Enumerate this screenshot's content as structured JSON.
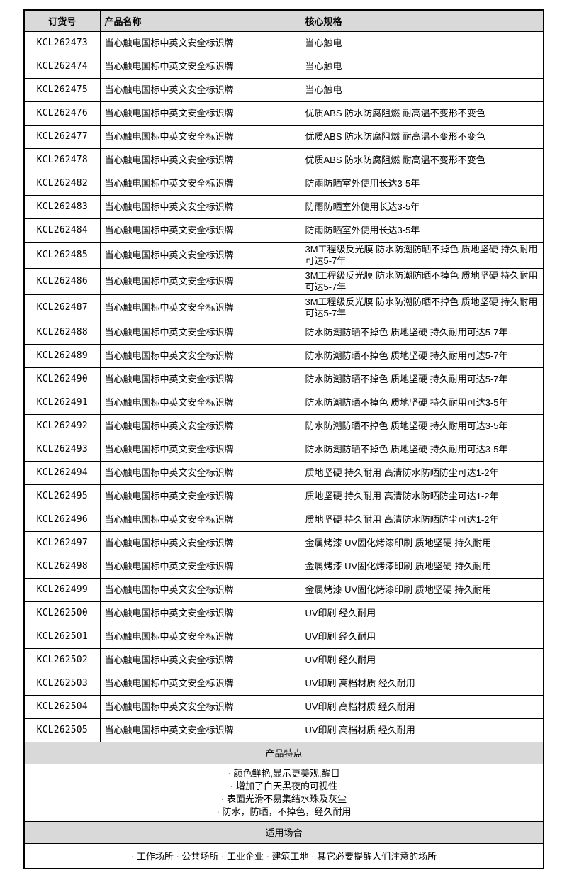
{
  "colors": {
    "header_bg": "#d9d9d9",
    "border": "#000000",
    "text": "#000000",
    "page_bg": "#ffffff"
  },
  "table": {
    "headers": [
      {
        "label": "订货号"
      },
      {
        "label": "产品名称"
      },
      {
        "label": "核心规格"
      }
    ],
    "rows": [
      {
        "order_id": "KCL262473",
        "product_name": "当心触电国标中英文安全标识牌",
        "spec": "当心触电"
      },
      {
        "order_id": "KCL262474",
        "product_name": "当心触电国标中英文安全标识牌",
        "spec": "当心触电"
      },
      {
        "order_id": "KCL262475",
        "product_name": "当心触电国标中英文安全标识牌",
        "spec": "当心触电"
      },
      {
        "order_id": "KCL262476",
        "product_name": "当心触电国标中英文安全标识牌",
        "spec": "优质ABS 防水防腐阻燃 耐高温不变形不变色"
      },
      {
        "order_id": "KCL262477",
        "product_name": "当心触电国标中英文安全标识牌",
        "spec": "优质ABS 防水防腐阻燃 耐高温不变形不变色"
      },
      {
        "order_id": "KCL262478",
        "product_name": "当心触电国标中英文安全标识牌",
        "spec": "优质ABS 防水防腐阻燃 耐高温不变形不变色"
      },
      {
        "order_id": "KCL262482",
        "product_name": "当心触电国标中英文安全标识牌",
        "spec": "防雨防晒室外使用长达3-5年"
      },
      {
        "order_id": "KCL262483",
        "product_name": "当心触电国标中英文安全标识牌",
        "spec": "防雨防晒室外使用长达3-5年"
      },
      {
        "order_id": "KCL262484",
        "product_name": "当心触电国标中英文安全标识牌",
        "spec": "防雨防晒室外使用长达3-5年"
      },
      {
        "order_id": "KCL262485",
        "product_name": "当心触电国标中英文安全标识牌",
        "spec": "3M工程级反光膜 防水防潮防晒不掉色 质地坚硬 持久耐用可达5-7年"
      },
      {
        "order_id": "KCL262486",
        "product_name": "当心触电国标中英文安全标识牌",
        "spec": "3M工程级反光膜 防水防潮防晒不掉色 质地坚硬 持久耐用可达5-7年"
      },
      {
        "order_id": "KCL262487",
        "product_name": "当心触电国标中英文安全标识牌",
        "spec": "3M工程级反光膜 防水防潮防晒不掉色 质地坚硬 持久耐用可达5-7年"
      },
      {
        "order_id": "KCL262488",
        "product_name": "当心触电国标中英文安全标识牌",
        "spec": "防水防潮防晒不掉色 质地坚硬 持久耐用可达5-7年"
      },
      {
        "order_id": "KCL262489",
        "product_name": "当心触电国标中英文安全标识牌",
        "spec": "防水防潮防晒不掉色 质地坚硬 持久耐用可达5-7年"
      },
      {
        "order_id": "KCL262490",
        "product_name": "当心触电国标中英文安全标识牌",
        "spec": "防水防潮防晒不掉色 质地坚硬 持久耐用可达5-7年"
      },
      {
        "order_id": "KCL262491",
        "product_name": "当心触电国标中英文安全标识牌",
        "spec": "防水防潮防晒不掉色 质地坚硬 持久耐用可达3-5年"
      },
      {
        "order_id": "KCL262492",
        "product_name": "当心触电国标中英文安全标识牌",
        "spec": "防水防潮防晒不掉色 质地坚硬 持久耐用可达3-5年"
      },
      {
        "order_id": "KCL262493",
        "product_name": "当心触电国标中英文安全标识牌",
        "spec": "防水防潮防晒不掉色 质地坚硬 持久耐用可达3-5年"
      },
      {
        "order_id": "KCL262494",
        "product_name": "当心触电国标中英文安全标识牌",
        "spec": "质地坚硬 持久耐用 高清防水防晒防尘可达1-2年"
      },
      {
        "order_id": "KCL262495",
        "product_name": "当心触电国标中英文安全标识牌",
        "spec": "质地坚硬 持久耐用 高清防水防晒防尘可达1-2年"
      },
      {
        "order_id": "KCL262496",
        "product_name": "当心触电国标中英文安全标识牌",
        "spec": "质地坚硬 持久耐用 高清防水防晒防尘可达1-2年"
      },
      {
        "order_id": "KCL262497",
        "product_name": "当心触电国标中英文安全标识牌",
        "spec": "金属烤漆 UV固化烤漆印刷 质地坚硬 持久耐用"
      },
      {
        "order_id": "KCL262498",
        "product_name": "当心触电国标中英文安全标识牌",
        "spec": "金属烤漆 UV固化烤漆印刷 质地坚硬 持久耐用"
      },
      {
        "order_id": "KCL262499",
        "product_name": "当心触电国标中英文安全标识牌",
        "spec": "金属烤漆 UV固化烤漆印刷 质地坚硬 持久耐用"
      },
      {
        "order_id": "KCL262500",
        "product_name": "当心触电国标中英文安全标识牌",
        "spec": "UV印刷 经久耐用"
      },
      {
        "order_id": "KCL262501",
        "product_name": "当心触电国标中英文安全标识牌",
        "spec": "UV印刷 经久耐用"
      },
      {
        "order_id": "KCL262502",
        "product_name": "当心触电国标中英文安全标识牌",
        "spec": "UV印刷 经久耐用"
      },
      {
        "order_id": "KCL262503",
        "product_name": "当心触电国标中英文安全标识牌",
        "spec": "UV印刷 高档材质 经久耐用"
      },
      {
        "order_id": "KCL262504",
        "product_name": "当心触电国标中英文安全标识牌",
        "spec": "UV印刷 高档材质 经久耐用"
      },
      {
        "order_id": "KCL262505",
        "product_name": "当心触电国标中英文安全标识牌",
        "spec": "UV印刷 高档材质 经久耐用"
      }
    ]
  },
  "features_section": {
    "title": "产品特点",
    "items": [
      "· 颜色鲜艳,显示更美观,醒目",
      "· 增加了白天黑夜的可视性",
      "· 表面光滑不易集结水珠及灰尘",
      "· 防水，防晒，不掉色，经久耐用"
    ]
  },
  "usage_section": {
    "title": "适用场合",
    "text": "· 工作场所 · 公共场所 · 工业企业 · 建筑工地 · 其它必要提醒人们注意的场所"
  }
}
